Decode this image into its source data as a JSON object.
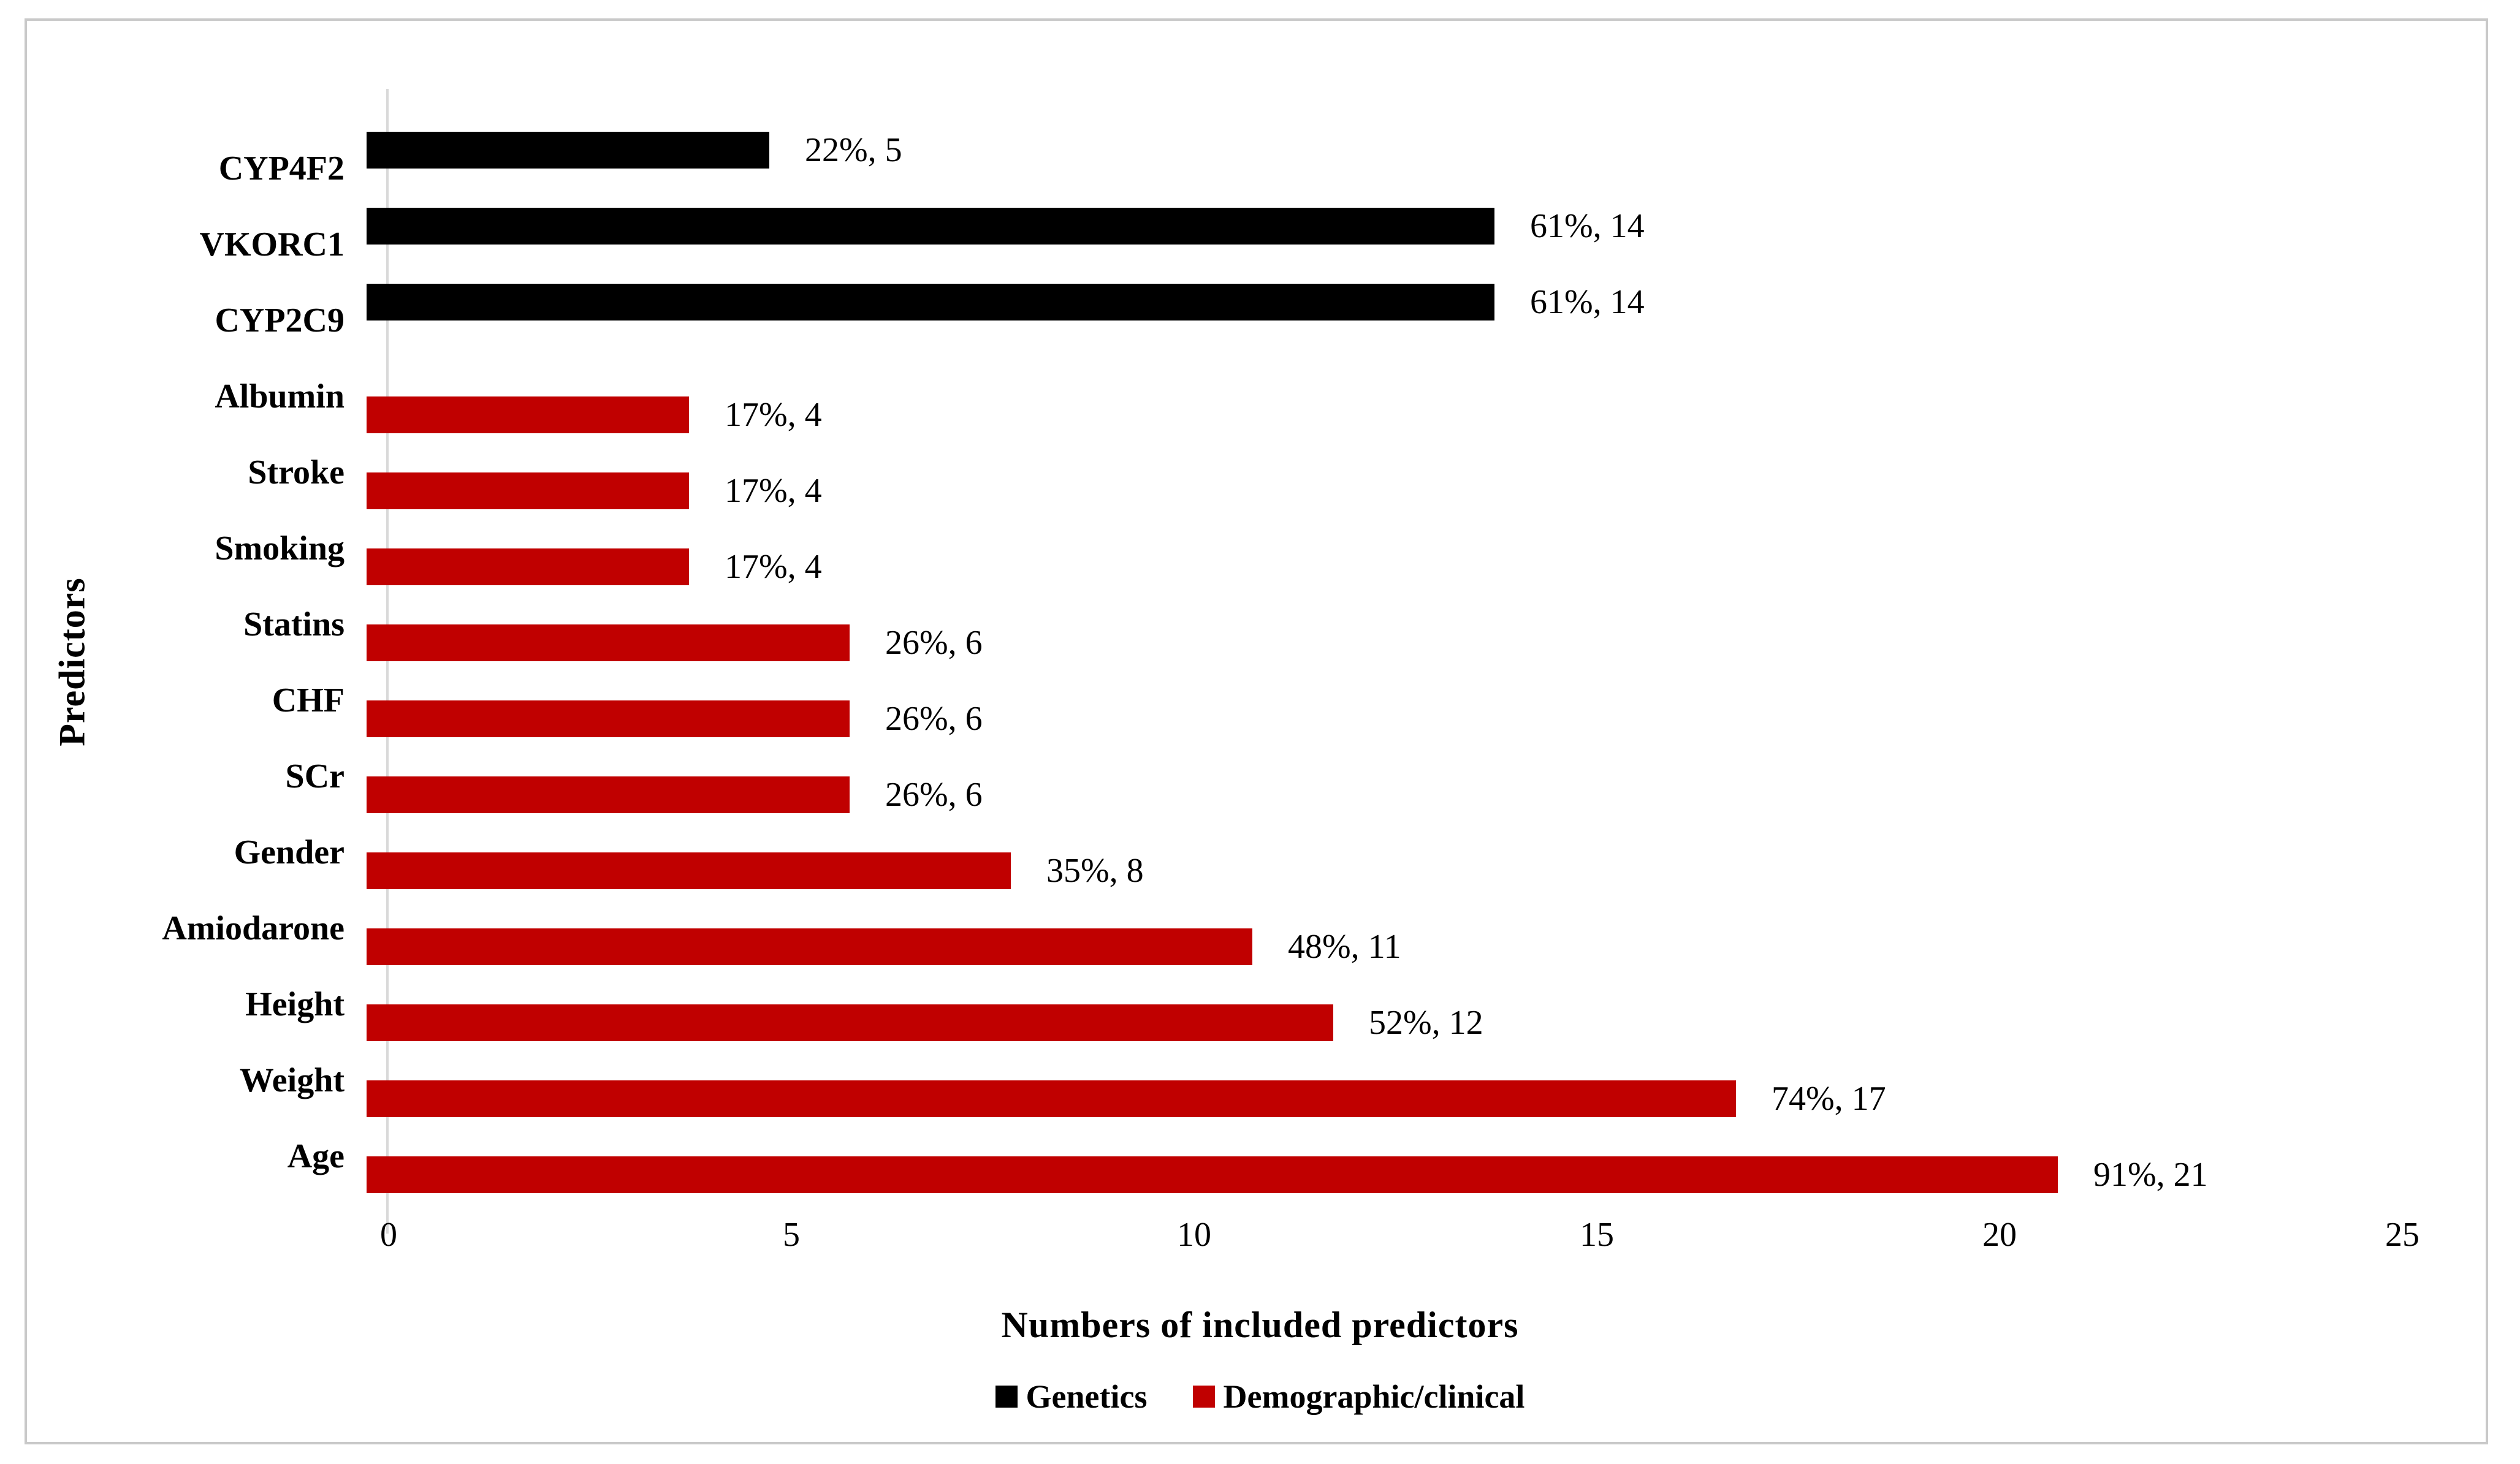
{
  "chart_data": {
    "type": "bar",
    "orientation": "horizontal",
    "xlabel": "Numbers of included predictors",
    "ylabel": "Predictors",
    "xlim": [
      0,
      25
    ],
    "xticks": [
      "0",
      "5",
      "10",
      "15",
      "20",
      "25"
    ],
    "grid": false,
    "legend_position": "bottom",
    "legend": [
      {
        "name": "Genetics",
        "color": "#000000"
      },
      {
        "name": "Demographic/clinical",
        "color": "#C00000"
      }
    ],
    "rows": [
      {
        "category": "CYP4F2",
        "group": "Genetics",
        "value": 5,
        "percent": "22%",
        "annotation": "22%, 5"
      },
      {
        "category": "VKORC1",
        "group": "Genetics",
        "value": 14,
        "percent": "61%",
        "annotation": "61%, 14"
      },
      {
        "category": "CYP2C9",
        "group": "Genetics",
        "value": 14,
        "percent": "61%",
        "annotation": "61%, 14"
      },
      {
        "category": "Albumin",
        "group": "Demographic/clinical",
        "value": 4,
        "percent": "17%",
        "annotation": "17%, 4"
      },
      {
        "category": "Stroke",
        "group": "Demographic/clinical",
        "value": 4,
        "percent": "17%",
        "annotation": "17%, 4"
      },
      {
        "category": "Smoking",
        "group": "Demographic/clinical",
        "value": 4,
        "percent": "17%",
        "annotation": "17%, 4"
      },
      {
        "category": "Statins",
        "group": "Demographic/clinical",
        "value": 6,
        "percent": "26%",
        "annotation": "26%, 6"
      },
      {
        "category": "CHF",
        "group": "Demographic/clinical",
        "value": 6,
        "percent": "26%",
        "annotation": "26%, 6"
      },
      {
        "category": "SCr",
        "group": "Demographic/clinical",
        "value": 6,
        "percent": "26%",
        "annotation": "26%, 6"
      },
      {
        "category": "Gender",
        "group": "Demographic/clinical",
        "value": 8,
        "percent": "35%",
        "annotation": "35%, 8"
      },
      {
        "category": "Amiodarone",
        "group": "Demographic/clinical",
        "value": 11,
        "percent": "48%",
        "annotation": "48%, 11"
      },
      {
        "category": "Height",
        "group": "Demographic/clinical",
        "value": 12,
        "percent": "52%",
        "annotation": "52%, 12"
      },
      {
        "category": "Weight",
        "group": "Demographic/clinical",
        "value": 17,
        "percent": "74%",
        "annotation": "74%, 17"
      },
      {
        "category": "Age",
        "group": "Demographic/clinical",
        "value": 21,
        "percent": "91%",
        "annotation": "91%, 21"
      }
    ],
    "colors": {
      "Genetics": "#000000",
      "Demographic/clinical": "#C00000",
      "axis_line": "#D9D9D9",
      "frame_border": "#C9C9C9"
    }
  }
}
